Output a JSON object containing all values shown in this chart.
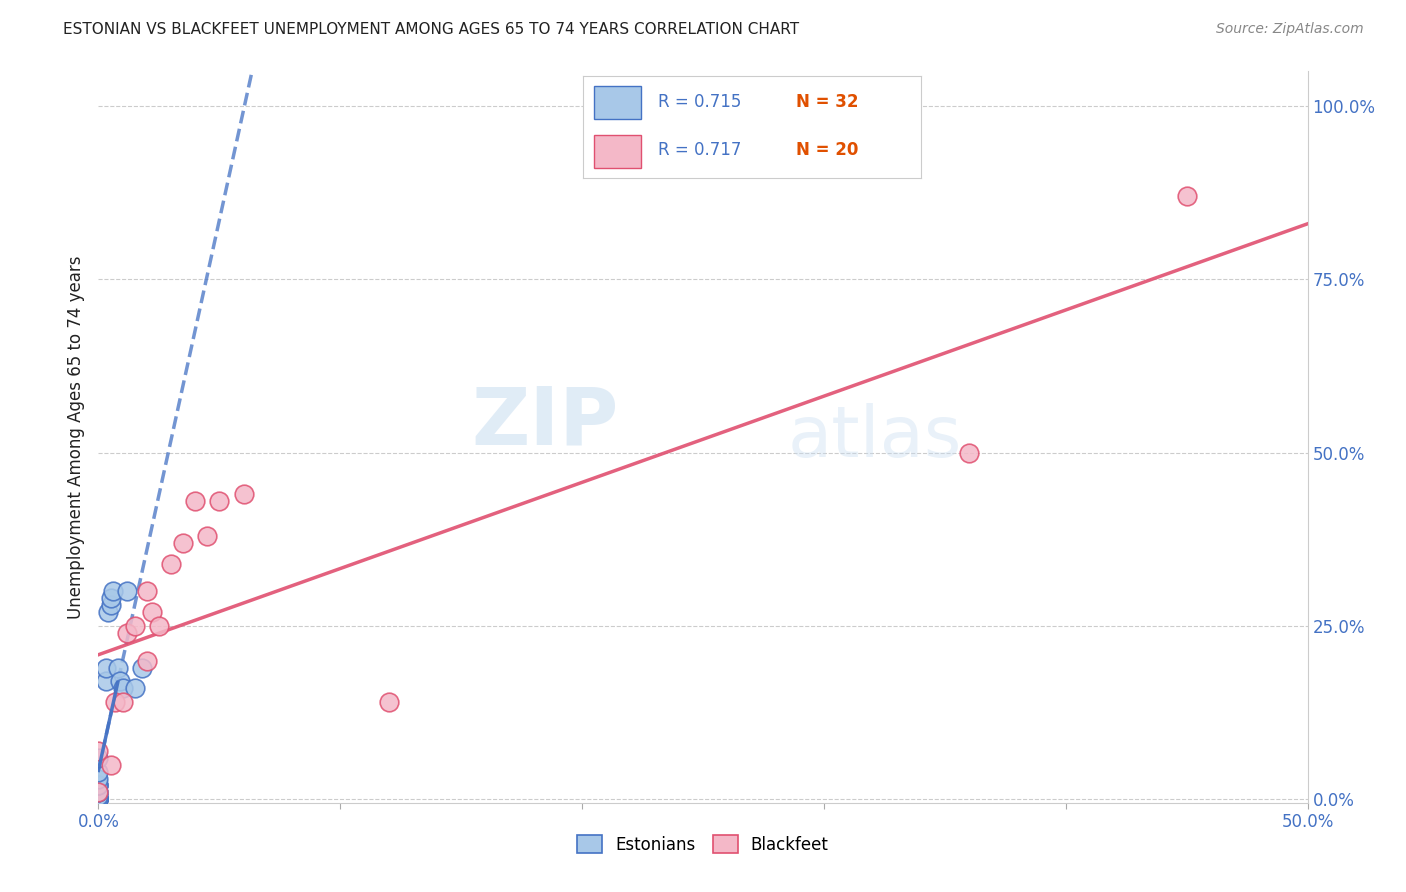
{
  "title": "ESTONIAN VS BLACKFEET UNEMPLOYMENT AMONG AGES 65 TO 74 YEARS CORRELATION CHART",
  "source": "Source: ZipAtlas.com",
  "ylabel": "Unemployment Among Ages 65 to 74 years",
  "xlim": [
    0.0,
    0.5
  ],
  "ylim": [
    -0.005,
    1.05
  ],
  "xtick_positions": [
    0.0,
    0.1,
    0.2,
    0.3,
    0.4,
    0.5
  ],
  "xtick_show_labels": [
    true,
    false,
    false,
    false,
    false,
    true
  ],
  "xticklabels": [
    "0.0%",
    "",
    "",
    "",
    "",
    "50.0%"
  ],
  "yticks_right": [
    0.0,
    0.25,
    0.5,
    0.75,
    1.0
  ],
  "yticklabels_right": [
    "0.0%",
    "25.0%",
    "50.0%",
    "75.0%",
    "100.0%"
  ],
  "watermark_zip": "ZIP",
  "watermark_atlas": "atlas",
  "legend_r_estonian": "R = 0.715",
  "legend_n_estonian": "N = 32",
  "legend_r_blackfeet": "R = 0.717",
  "legend_n_blackfeet": "N = 20",
  "estonian_color": "#a8c8e8",
  "estonian_edge": "#4472c4",
  "blackfeet_color": "#f4b8c8",
  "blackfeet_edge": "#e05070",
  "trend_estonian_color": "#4472c4",
  "trend_blackfeet_color": "#e05070",
  "legend_r_color": "#4472c4",
  "legend_n_color": "#e05000",
  "title_color": "#222222",
  "source_color": "#888888",
  "ylabel_color": "#222222",
  "xtick_color": "#4472c4",
  "ytick_color": "#4472c4",
  "grid_color": "#cccccc",
  "background_color": "#ffffff",
  "estonian_x": [
    0.0,
    0.0,
    0.0,
    0.0,
    0.0,
    0.0,
    0.0,
    0.0,
    0.0,
    0.0,
    0.0,
    0.0,
    0.0,
    0.0,
    0.0,
    0.0,
    0.0,
    0.0,
    0.0,
    0.0,
    0.003,
    0.003,
    0.004,
    0.005,
    0.005,
    0.006,
    0.008,
    0.009,
    0.01,
    0.012,
    0.015,
    0.018
  ],
  "estonian_y": [
    0.0,
    0.0,
    0.0,
    0.0,
    0.0,
    0.0,
    0.0,
    0.0,
    0.0,
    0.0,
    0.005,
    0.005,
    0.01,
    0.01,
    0.02,
    0.02,
    0.02,
    0.03,
    0.04,
    0.06,
    0.17,
    0.19,
    0.27,
    0.28,
    0.29,
    0.3,
    0.19,
    0.17,
    0.16,
    0.3,
    0.16,
    0.19
  ],
  "blackfeet_x": [
    0.0,
    0.0,
    0.005,
    0.007,
    0.01,
    0.012,
    0.015,
    0.02,
    0.02,
    0.022,
    0.025,
    0.03,
    0.035,
    0.04,
    0.045,
    0.05,
    0.06,
    0.12,
    0.36,
    0.45
  ],
  "blackfeet_y": [
    0.01,
    0.07,
    0.05,
    0.14,
    0.14,
    0.24,
    0.25,
    0.2,
    0.3,
    0.27,
    0.25,
    0.34,
    0.37,
    0.43,
    0.38,
    0.43,
    0.44,
    0.14,
    0.5,
    0.87
  ],
  "scatter_size": 180,
  "trend_linewidth": 2.5
}
